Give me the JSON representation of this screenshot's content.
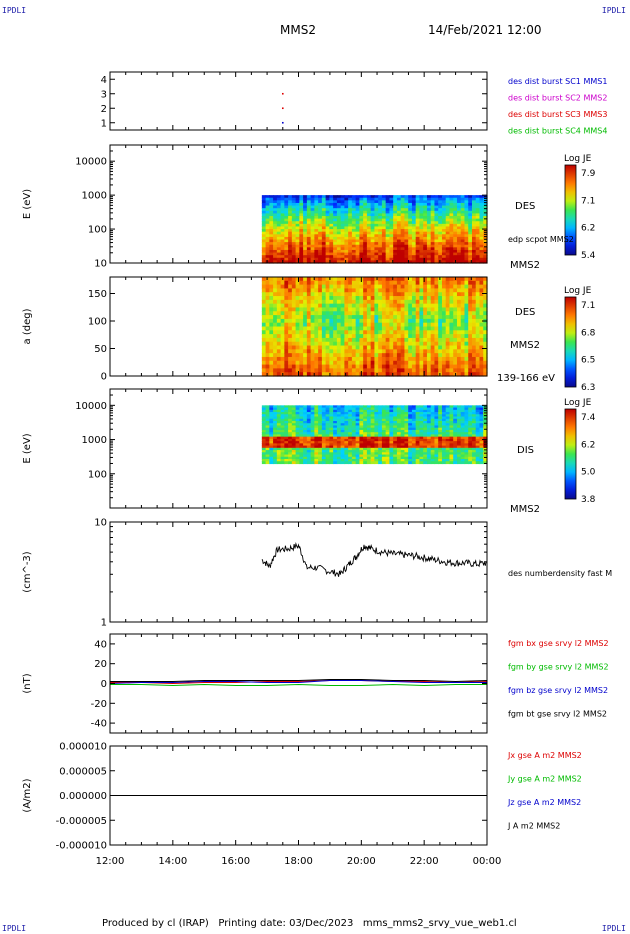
{
  "corner_labels": {
    "top_left": "IPDLI",
    "top_right": "IPDLI",
    "bottom_left": "IPDLI",
    "bottom_right": "IPDLI"
  },
  "header": {
    "spacecraft": "MMS2",
    "datetime": "14/Feb/2021 12:00"
  },
  "footer": {
    "produced": "Produced by cl (IRAP)",
    "printing": "Printing date: 03/Dec/2023",
    "file": "mms_mms2_srvy_vue_web1.cl"
  },
  "colors": {
    "blue": "#0000cc",
    "magenta": "#cc00cc",
    "red": "#dd0000",
    "green": "#00bb00",
    "black": "#000000"
  },
  "time_axis": {
    "start": "12:00",
    "end": "00:00",
    "ticks": [
      "12:00",
      "14:00",
      "16:00",
      "18:00",
      "20:00",
      "22:00",
      "00:00"
    ]
  },
  "chart_data": [
    {
      "type": "scatter",
      "title": "",
      "ylabel": "",
      "ylim": [
        0.5,
        4.5
      ],
      "yticks": [
        "1",
        "2",
        "3",
        "4"
      ],
      "legend": [
        "des dist burst SC1 MMS1",
        "des dist burst SC2 MMS2",
        "des dist burst SC3 MMS3",
        "des dist burst SC4 MMS4"
      ],
      "legend_colors": [
        "#0000cc",
        "#cc00cc",
        "#dd0000",
        "#00bb00"
      ],
      "series": [
        {
          "name": "des dist burst SC1 MMS1",
          "x": [
            "17:30"
          ],
          "values": [
            1
          ]
        },
        {
          "name": "des dist burst SC3 MMS3",
          "x": [
            "17:30",
            "17:30"
          ],
          "values": [
            2,
            3
          ]
        }
      ]
    },
    {
      "type": "heatmap",
      "ylabel": "E (eV)",
      "yscale": "log",
      "ylim": [
        10,
        30000
      ],
      "yticks": [
        "10",
        "100",
        "1000",
        "10000"
      ],
      "data_start": "16:50",
      "colorbar": {
        "title": "Log JE",
        "ticks": [
          "7.9",
          "7.1",
          "6.2",
          "5.4"
        ]
      },
      "labels": [
        "DES",
        "edp scpot MMS2",
        "MMS2"
      ]
    },
    {
      "type": "heatmap",
      "ylabel": "a (deg)",
      "ylim": [
        0,
        180
      ],
      "yticks": [
        "0",
        "50",
        "100",
        "150"
      ],
      "data_start": "16:50",
      "colorbar": {
        "title": "Log JE",
        "ticks": [
          "7.1",
          "6.8",
          "6.5",
          "6.3"
        ]
      },
      "labels": [
        "DES",
        "MMS2",
        "139-166 eV"
      ]
    },
    {
      "type": "heatmap",
      "ylabel": "E (eV)",
      "yscale": "log",
      "ylim": [
        10,
        30000
      ],
      "yticks": [
        "100",
        "1000",
        "10000"
      ],
      "data_start": "16:50",
      "colorbar": {
        "title": "Log JE",
        "ticks": [
          "7.4",
          "6.2",
          "5.0",
          "3.8"
        ]
      },
      "labels": [
        "DIS",
        "MMS2"
      ]
    },
    {
      "type": "line",
      "ylabel": "(cm^-3)",
      "yscale": "log",
      "ylim": [
        1,
        10
      ],
      "yticks": [
        "1",
        "10"
      ],
      "legend": [
        "des numberdensity fast M"
      ],
      "series": [
        {
          "name": "des numberdensity fast M",
          "x": [
            "16:50",
            "17:05",
            "17:20",
            "17:40",
            "18:00",
            "18:15",
            "18:35",
            "19:00",
            "19:20",
            "19:35",
            "19:50",
            "20:05",
            "20:20",
            "20:40",
            "21:00",
            "21:20",
            "21:40",
            "22:00",
            "22:20",
            "22:40",
            "23:00",
            "23:20",
            "23:40",
            "00:00"
          ],
          "values": [
            4.2,
            3.6,
            5.3,
            5.4,
            5.8,
            3.5,
            3.5,
            3.2,
            3.0,
            3.7,
            4.5,
            5.8,
            5.4,
            5.0,
            4.8,
            4.7,
            4.6,
            4.4,
            4.2,
            4.0,
            3.9,
            3.9,
            3.8,
            3.9
          ]
        }
      ]
    },
    {
      "type": "line",
      "ylabel": "(nT)",
      "ylim": [
        -50,
        50
      ],
      "yticks": [
        "-40",
        "-20",
        "0",
        "20",
        "40"
      ],
      "legend": [
        "fgm bx gse srvy l2 MMS2",
        "fgm by gse srvy l2 MMS2",
        "fgm bz gse srvy l2 MMS2",
        "fgm bt gse srvy l2 MMS2"
      ],
      "legend_colors": [
        "#dd0000",
        "#00bb00",
        "#0000cc",
        "#000000"
      ],
      "x": [
        "12:00",
        "13:00",
        "14:00",
        "15:00",
        "16:00",
        "17:00",
        "18:00",
        "19:00",
        "20:00",
        "21:00",
        "22:00",
        "23:00",
        "00:00"
      ],
      "series": [
        {
          "name": "fgm bx gse srvy l2 MMS2",
          "values": [
            1,
            1,
            0,
            1,
            1,
            2,
            2,
            3,
            3,
            2,
            2,
            1,
            2
          ]
        },
        {
          "name": "fgm by gse srvy l2 MMS2",
          "values": [
            -1,
            -1,
            -2,
            -1,
            -2,
            -2,
            -1,
            -2,
            -2,
            -1,
            -2,
            -1,
            -1
          ]
        },
        {
          "name": "fgm bz gse srvy l2 MMS2",
          "values": [
            0,
            1,
            1,
            2,
            2,
            1,
            1,
            3,
            3,
            2,
            1,
            1,
            1
          ]
        },
        {
          "name": "fgm bt gse srvy l2 MMS2",
          "values": [
            2,
            2,
            2,
            3,
            3,
            3,
            3,
            4,
            4,
            3,
            3,
            2,
            3
          ]
        }
      ]
    },
    {
      "type": "line",
      "ylabel": "(A/m2)",
      "ylim": [
        -1e-05,
        1e-05
      ],
      "yticks": [
        "-0.000010",
        "-0.000005",
        "0.000000",
        "0.000005",
        "0.000010"
      ],
      "legend": [
        "Jx gse A m2 MMS2",
        "Jy gse A m2 MMS2",
        "Jz gse A m2 MMS2",
        "J A m2 MMS2"
      ],
      "legend_colors": [
        "#dd0000",
        "#00bb00",
        "#0000cc",
        "#000000"
      ],
      "x": [
        "12:00",
        "00:00"
      ],
      "series": [
        {
          "name": "J A m2 MMS2",
          "values": [
            0,
            0
          ]
        }
      ]
    }
  ]
}
